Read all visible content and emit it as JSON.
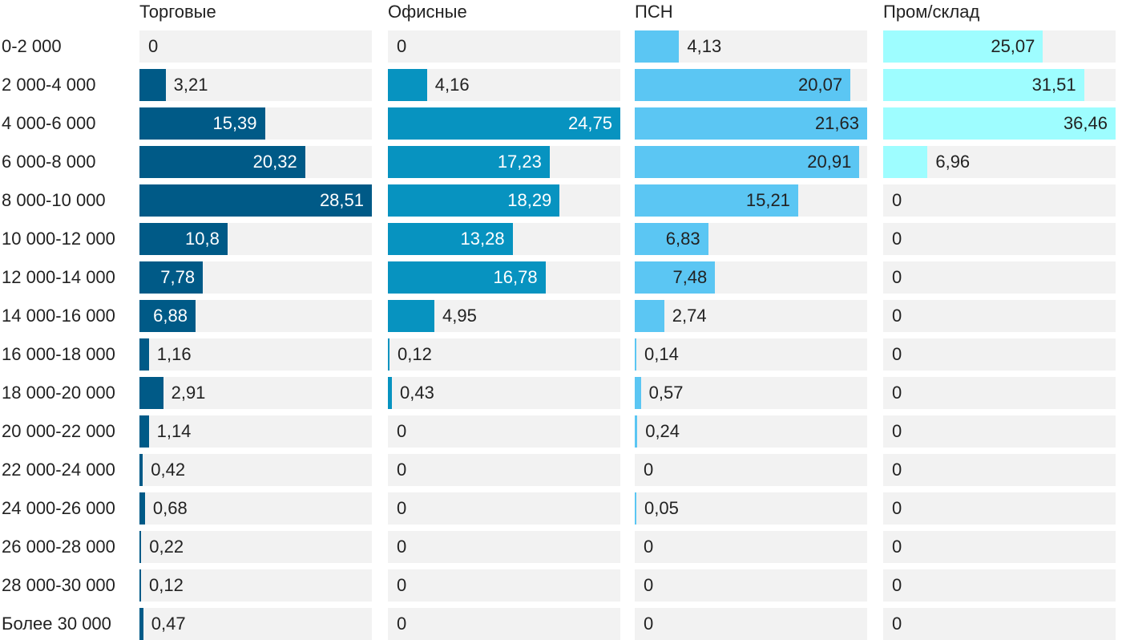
{
  "chart_data": {
    "type": "bar",
    "orientation": "horizontal",
    "categories": [
      "0-2 000",
      "2 000-4 000",
      "4 000-6 000",
      "6 000-8 000",
      "8 000-10 000",
      "10 000-12 000",
      "12 000-14 000",
      "14 000-16 000",
      "16 000-18 000",
      "18 000-20 000",
      "20 000-22 000",
      "22 000-24 000",
      "24 000-26 000",
      "26 000-28 000",
      "28 000-30 000",
      "Более 30 000"
    ],
    "series": [
      {
        "name": "Торговые",
        "color": "#005a87",
        "values": [
          0,
          3.21,
          15.39,
          20.32,
          28.51,
          10.8,
          7.78,
          6.88,
          1.16,
          2.91,
          1.14,
          0.42,
          0.68,
          0.22,
          0.12,
          0.47
        ],
        "labels": [
          "0",
          "3,21",
          "15,39",
          "20,32",
          "28,51",
          "10,8",
          "7,78",
          "6,88",
          "1,16",
          "2,91",
          "1,14",
          "0,42",
          "0,68",
          "0,22",
          "0,12",
          "0,47"
        ]
      },
      {
        "name": "Офисные",
        "color": "#0793c0",
        "values": [
          0,
          4.16,
          24.75,
          17.23,
          18.29,
          13.28,
          16.78,
          4.95,
          0.12,
          0.43,
          0,
          0,
          0,
          0,
          0,
          0
        ],
        "labels": [
          "0",
          "4,16",
          "24,75",
          "17,23",
          "18,29",
          "13,28",
          "16,78",
          "4,95",
          "0,12",
          "0,43",
          "0",
          "0",
          "0",
          "0",
          "0",
          "0"
        ]
      },
      {
        "name": "ПСН",
        "color": "#5bc6f3",
        "values": [
          4.13,
          20.07,
          21.63,
          20.91,
          15.21,
          6.83,
          7.48,
          2.74,
          0.14,
          0.57,
          0.24,
          0,
          0.05,
          0,
          0,
          0
        ],
        "labels": [
          "4,13",
          "20,07",
          "21,63",
          "20,91",
          "15,21",
          "6,83",
          "7,48",
          "2,74",
          "0,14",
          "0,57",
          "0,24",
          "0",
          "0,05",
          "0",
          "0",
          "0"
        ]
      },
      {
        "name": "Пром/склад",
        "color": "#9efdff",
        "values": [
          25.07,
          31.51,
          36.46,
          6.96,
          0,
          0,
          0,
          0,
          0,
          0,
          0,
          0,
          0,
          0,
          0,
          0
        ],
        "labels": [
          "25,07",
          "31,51",
          "36,46",
          "6,96",
          "0",
          "0",
          "0",
          "0",
          "0",
          "0",
          "0",
          "0",
          "0",
          "0",
          "0",
          "0"
        ]
      }
    ],
    "title": "",
    "xlabel": "",
    "ylabel": "",
    "grid": false,
    "legend": "none"
  }
}
